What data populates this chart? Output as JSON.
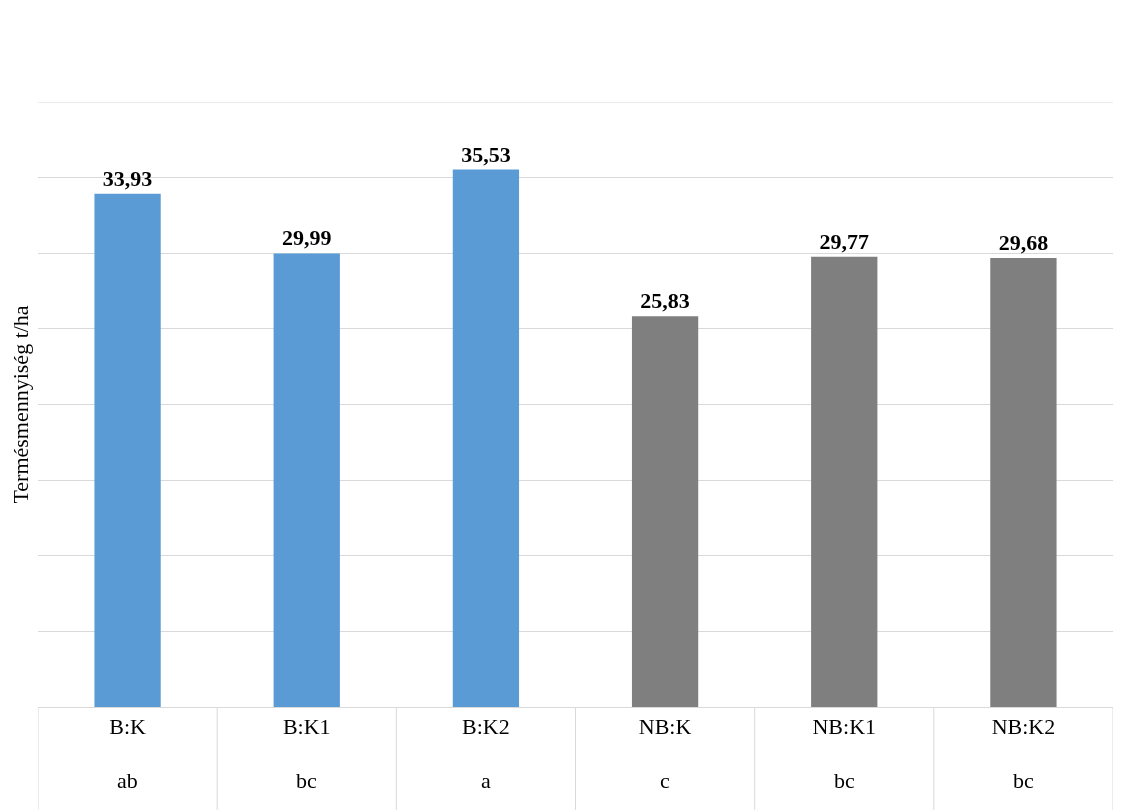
{
  "chart_data": {
    "type": "bar",
    "ylabel": "Termésmennyiség t/ha",
    "categories": [
      "B:K",
      "B:K1",
      "B:K2",
      "NB:K",
      "NB:K1",
      "NB:K2"
    ],
    "values": [
      33.93,
      29.99,
      35.53,
      25.83,
      29.77,
      29.68
    ],
    "colors": [
      "#5b9bd5",
      "#5b9bd5",
      "#5b9bd5",
      "#7f7f7f",
      "#7f7f7f",
      "#7f7f7f"
    ],
    "value_labels": [
      "33,93",
      "29,99",
      "35,53",
      "25,83",
      "29,77",
      "29,68"
    ],
    "annotations": [
      "ab",
      "bc",
      "a",
      "c",
      "bc",
      "bc"
    ],
    "ylim": [
      0,
      40
    ],
    "yticks": [
      {
        "value": 0,
        "label": null
      },
      {
        "value": 5,
        "label": null
      },
      {
        "value": 10,
        "label": null
      },
      {
        "value": 15,
        "label": null
      },
      {
        "value": 20,
        "label": null
      },
      {
        "value": 25,
        "label": null
      },
      {
        "value": 30,
        "label": null
      },
      {
        "value": 35,
        "label": null
      },
      {
        "value": 40,
        "label": null
      }
    ],
    "grid": "y",
    "tick_labels": "x"
  }
}
